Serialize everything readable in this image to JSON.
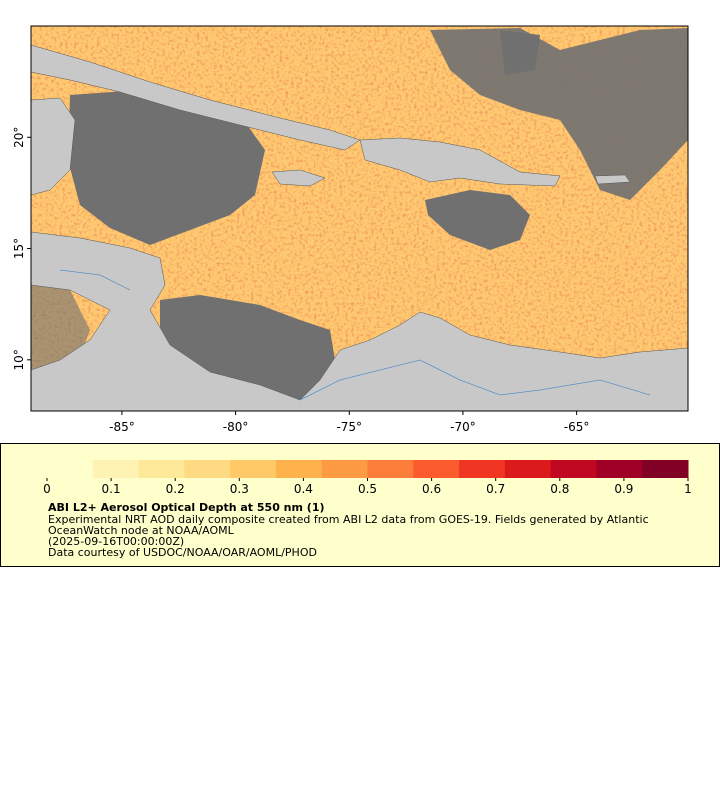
{
  "map": {
    "xlim": [
      -89,
      -60.1
    ],
    "ylim": [
      7.7,
      25
    ],
    "xticks": [
      {
        "value": -85,
        "label": "-85°"
      },
      {
        "value": -80,
        "label": "-80°"
      },
      {
        "value": -75,
        "label": "-75°"
      },
      {
        "value": -70,
        "label": "-70°"
      },
      {
        "value": -65,
        "label": "-65°"
      }
    ],
    "yticks": [
      {
        "value": 20,
        "label": "20°"
      },
      {
        "value": 15,
        "label": "15°"
      },
      {
        "value": 10,
        "label": "10°"
      }
    ]
  },
  "legend": {
    "lim": [
      0,
      1
    ],
    "ticks": [
      0,
      0.1,
      0.2,
      0.3,
      0.4,
      0.5,
      0.6,
      0.7,
      0.8,
      0.9,
      1
    ],
    "colors": [
      "#ffffcc",
      "#fff3b3",
      "#fee99a",
      "#fedb83",
      "#fec966",
      "#feb24c",
      "#fd9a44",
      "#fd7e3a",
      "#fc5b2e",
      "#f03523",
      "#db1a1c",
      "#c00823",
      "#a00026",
      "#800026"
    ],
    "title": "ABI L2+ Aerosol Optical Depth at 550 nm (1)",
    "description": [
      "Experimental NRT AOD daily composite created from ABI L2 data from GOES-19. Fields generated by Atlantic",
      "OceanWatch node at NOAA/AOML",
      "(2025-09-16T00:00:00Z)",
      "Data courtesy of USDOC/NOAA/OAR/AOML/PHOD"
    ]
  }
}
